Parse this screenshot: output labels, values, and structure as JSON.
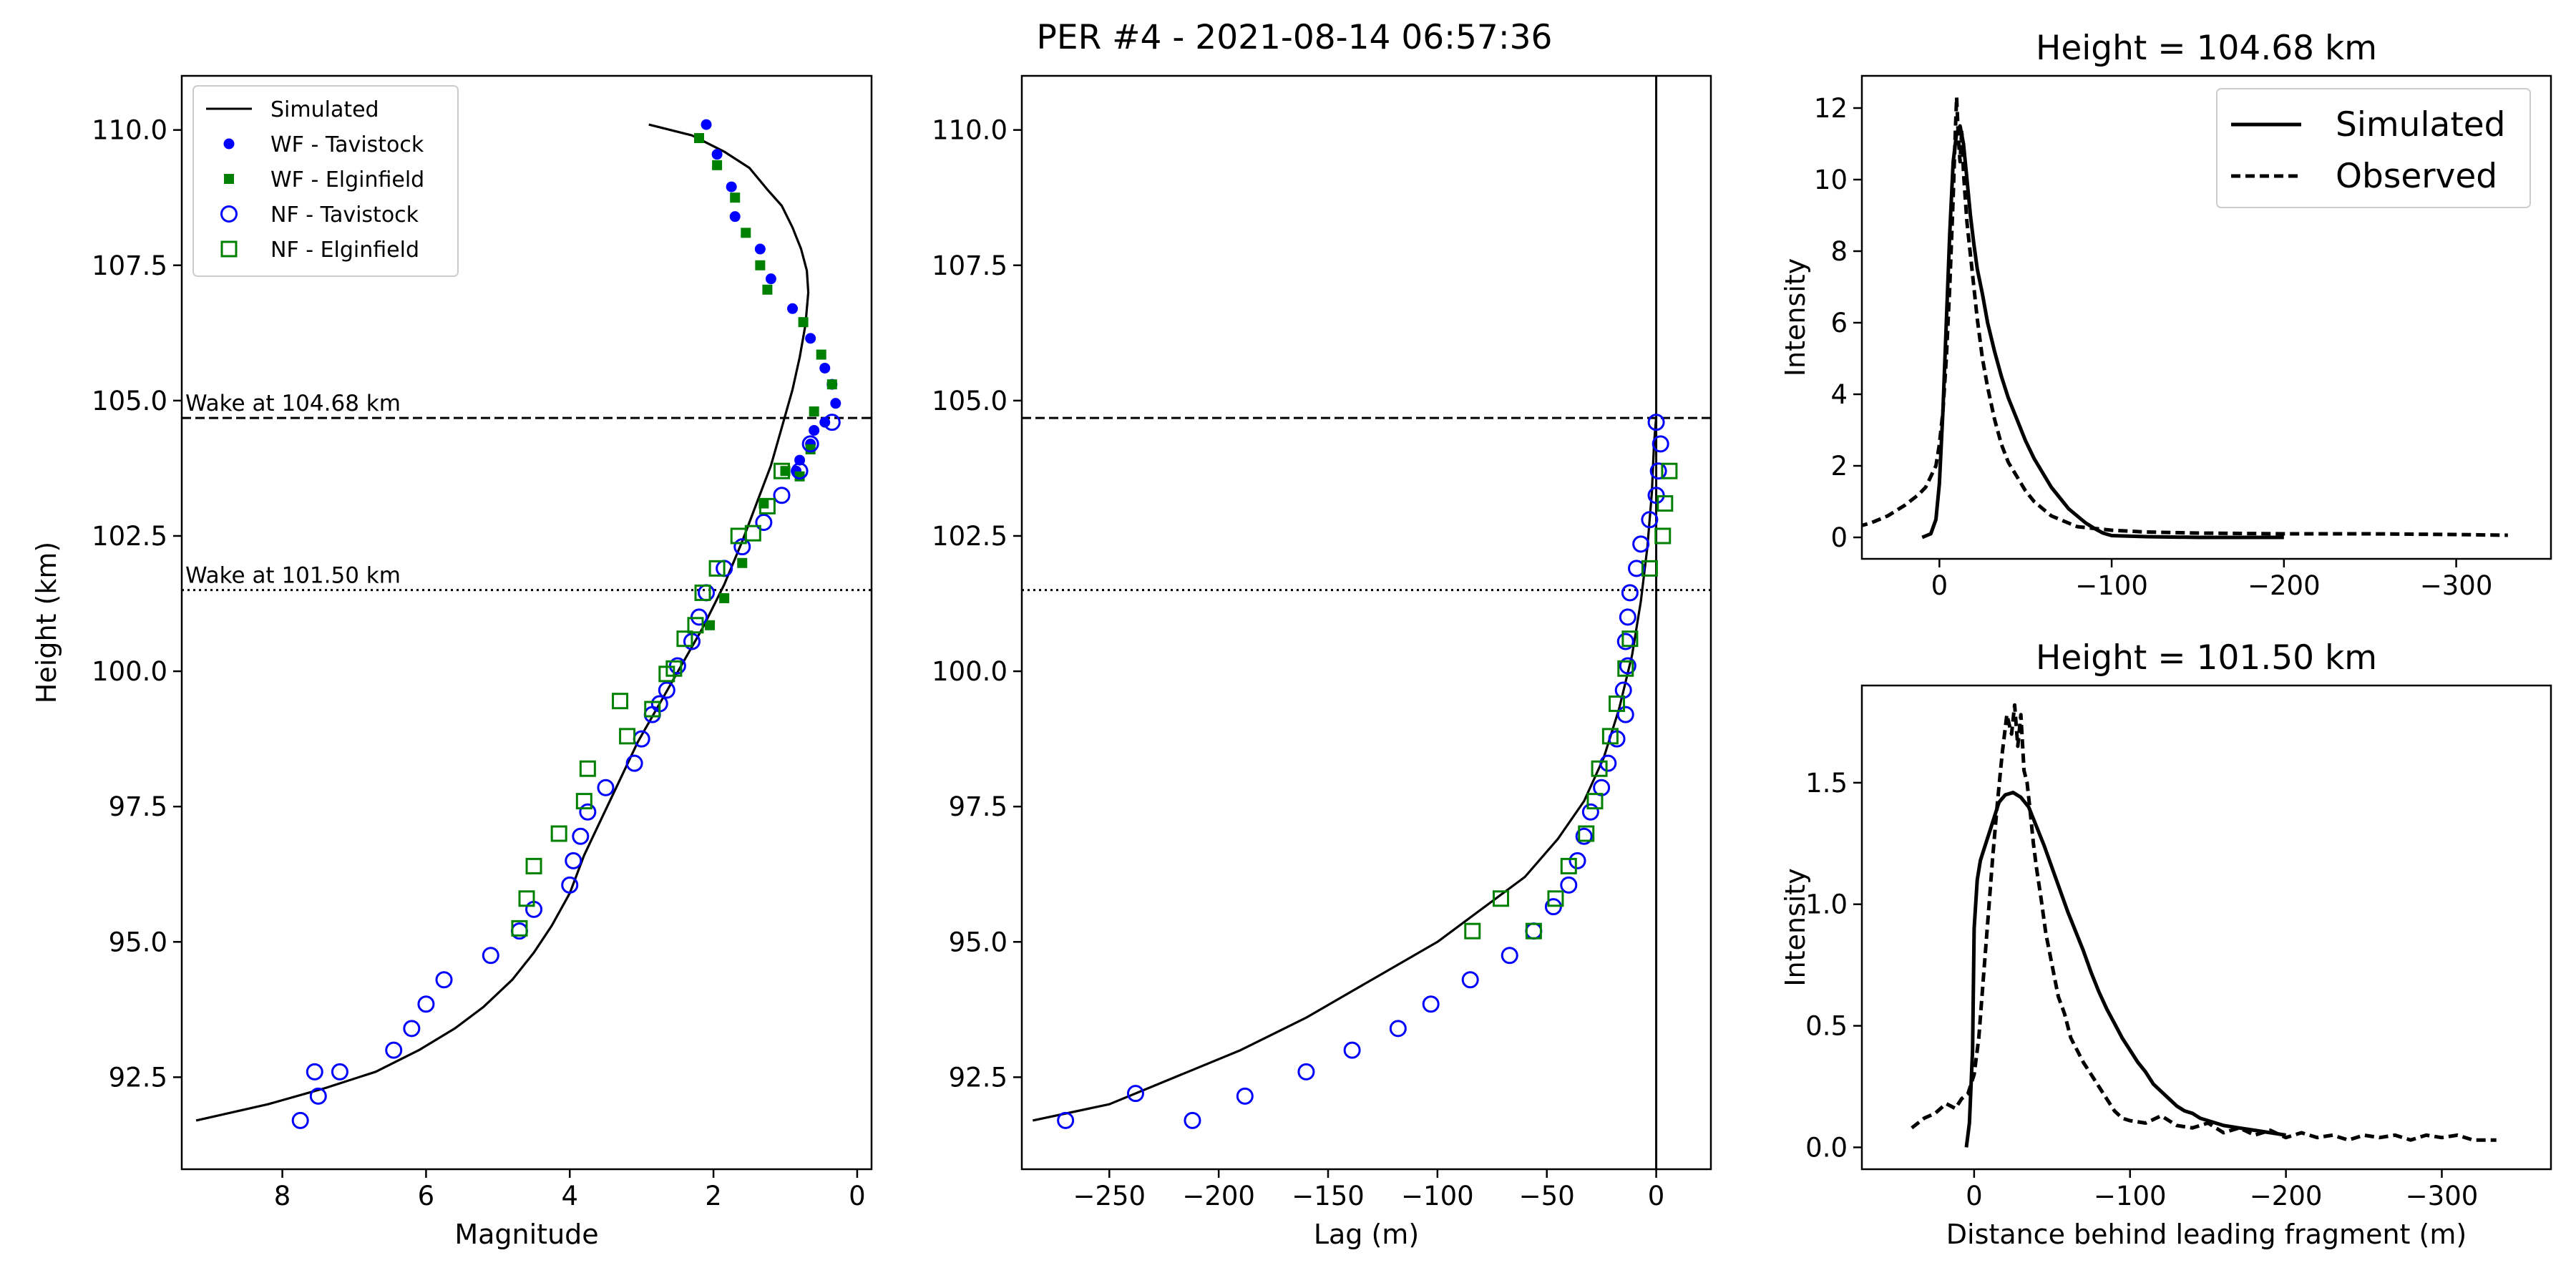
{
  "figure": {
    "suptitle": "PER #4 - 2021-08-14 06:57:36"
  },
  "chart_data": [
    {
      "id": "magnitude",
      "type": "line+scatter",
      "title": "",
      "xlabel": "Magnitude",
      "ylabel": "Height (km)",
      "xlim": [
        9.4,
        -0.2
      ],
      "ylim": [
        90.8,
        111.0
      ],
      "xticks": [
        8,
        6,
        4,
        2,
        0
      ],
      "yticks": [
        92.5,
        95.0,
        97.5,
        100.0,
        102.5,
        105.0,
        107.5,
        110.0
      ],
      "legend_position": "upper-left",
      "hlines": [
        {
          "y": 104.68,
          "style": "dashed",
          "label": "Wake at 104.68 km"
        },
        {
          "y": 101.5,
          "style": "dotted",
          "label": "Wake at 101.50 km"
        }
      ],
      "series": [
        {
          "name": "Simulated",
          "kind": "line",
          "color": "#000000",
          "x": [
            9.2,
            8.2,
            7.4,
            6.7,
            6.1,
            5.6,
            5.2,
            4.8,
            4.5,
            4.25,
            4.0,
            3.8,
            3.55,
            3.3,
            3.05,
            2.75,
            2.45,
            2.15,
            1.85,
            1.6,
            1.4,
            1.2,
            1.05,
            0.9,
            0.8,
            0.72,
            0.68,
            0.7,
            0.78,
            0.9,
            1.05,
            1.25,
            1.5,
            1.85,
            2.3,
            2.9
          ],
          "y": [
            91.7,
            92.0,
            92.3,
            92.6,
            93.0,
            93.4,
            93.8,
            94.3,
            94.8,
            95.3,
            95.9,
            96.6,
            97.3,
            98.0,
            98.7,
            99.4,
            100.1,
            100.8,
            101.6,
            102.4,
            103.1,
            103.8,
            104.5,
            105.2,
            105.8,
            106.4,
            107.0,
            107.4,
            107.8,
            108.2,
            108.6,
            108.9,
            109.3,
            109.6,
            109.9,
            110.1
          ]
        },
        {
          "name": "WF - Tavistock",
          "kind": "filled-circle",
          "color": "#0000ff",
          "x": [
            2.1,
            1.95,
            1.75,
            1.7,
            1.35,
            1.2,
            0.9,
            0.65,
            0.45,
            0.35,
            0.3,
            0.45,
            0.6,
            0.65,
            0.8,
            0.85
          ],
          "y": [
            110.1,
            109.55,
            108.95,
            108.4,
            107.8,
            107.25,
            106.7,
            106.15,
            105.6,
            105.3,
            104.95,
            104.6,
            104.45,
            104.2,
            103.9,
            103.7
          ]
        },
        {
          "name": "WF - Elginfield",
          "kind": "filled-square",
          "color": "#008000",
          "x": [
            2.2,
            1.95,
            1.7,
            1.55,
            1.35,
            1.25,
            0.75,
            0.5,
            0.35,
            0.6,
            0.65,
            0.8,
            1.0,
            1.3,
            1.6,
            1.85,
            2.05
          ],
          "y": [
            109.85,
            109.35,
            108.75,
            108.1,
            107.5,
            107.05,
            106.45,
            105.85,
            105.3,
            104.8,
            104.1,
            103.6,
            103.7,
            103.1,
            102.0,
            101.35,
            100.85
          ]
        },
        {
          "name": "NF - Tavistock",
          "kind": "open-circle",
          "color": "#0000ff",
          "x": [
            0.35,
            0.65,
            0.8,
            1.05,
            1.3,
            1.6,
            1.85,
            2.1,
            2.2,
            2.3,
            2.5,
            2.65,
            2.75,
            2.85,
            3.0,
            3.1,
            3.5,
            3.75,
            3.85,
            3.95,
            4.0,
            4.5,
            4.7,
            5.1,
            5.75,
            6.0,
            6.2,
            6.45,
            7.2,
            7.5,
            7.55,
            7.75
          ],
          "y": [
            104.6,
            104.2,
            103.7,
            103.25,
            102.75,
            102.3,
            101.9,
            101.45,
            101.0,
            100.55,
            100.1,
            99.65,
            99.4,
            99.2,
            98.75,
            98.3,
            97.85,
            97.4,
            96.95,
            96.5,
            96.05,
            95.6,
            95.2,
            94.75,
            94.3,
            93.85,
            93.4,
            93.0,
            92.6,
            92.15,
            92.6,
            91.7
          ]
        },
        {
          "name": "NF - Elginfield",
          "kind": "open-square",
          "color": "#008000",
          "x": [
            1.05,
            1.25,
            1.45,
            1.65,
            1.95,
            2.15,
            2.25,
            2.4,
            2.55,
            2.65,
            2.85,
            3.2,
            3.3,
            3.75,
            3.8,
            4.15,
            4.5,
            4.6,
            4.7
          ],
          "y": [
            103.7,
            103.05,
            102.55,
            102.5,
            101.9,
            101.45,
            100.85,
            100.6,
            100.05,
            99.95,
            99.3,
            98.8,
            99.45,
            98.2,
            97.6,
            97.0,
            96.4,
            95.8,
            95.25
          ]
        }
      ]
    },
    {
      "id": "lag",
      "type": "line+scatter",
      "title": "",
      "xlabel": "Lag (m)",
      "ylabel": "",
      "xlim": [
        -290,
        25
      ],
      "ylim": [
        90.8,
        111.0
      ],
      "xticks": [
        -250,
        -200,
        -150,
        -100,
        -50,
        0
      ],
      "yticks": [
        92.5,
        95.0,
        97.5,
        100.0,
        102.5,
        105.0,
        107.5,
        110.0
      ],
      "vline_x": 0,
      "hlines": [
        {
          "y": 104.68,
          "style": "dashed"
        },
        {
          "y": 101.5,
          "style": "dotted"
        }
      ],
      "series": [
        {
          "name": "Simulated",
          "kind": "line",
          "color": "#000000",
          "x": [
            -285,
            -250,
            -220,
            -190,
            -160,
            -130,
            -100,
            -80,
            -60,
            -45,
            -33,
            -24,
            -17,
            -11,
            -7,
            -4,
            -2,
            -1,
            0
          ],
          "y": [
            91.7,
            92.0,
            92.5,
            93.0,
            93.6,
            94.3,
            95.0,
            95.6,
            96.2,
            96.9,
            97.6,
            98.4,
            99.3,
            100.3,
            101.3,
            102.3,
            103.3,
            104.2,
            104.7
          ]
        },
        {
          "name": "NF - Tavistock",
          "kind": "open-circle",
          "color": "#0000ff",
          "x": [
            0,
            2,
            1,
            0,
            -3,
            -7,
            -9,
            -12,
            -13,
            -14,
            -13,
            -15,
            -14,
            -18,
            -22,
            -25,
            -30,
            -33,
            -36,
            -40,
            -47,
            -56,
            -67,
            -85,
            -103,
            -118,
            -139,
            -160,
            -188,
            -212,
            -238,
            -270
          ],
          "y": [
            104.6,
            104.2,
            103.7,
            103.25,
            102.8,
            102.35,
            101.9,
            101.45,
            101.0,
            100.55,
            100.1,
            99.65,
            99.2,
            98.75,
            98.3,
            97.85,
            97.4,
            96.95,
            96.5,
            96.05,
            95.65,
            95.2,
            94.75,
            94.3,
            93.85,
            93.4,
            93.0,
            92.6,
            92.15,
            91.7,
            92.2,
            91.7
          ]
        },
        {
          "name": "NF - Elginfield",
          "kind": "open-square",
          "color": "#008000",
          "x": [
            6,
            4,
            3,
            -3,
            -12,
            -14,
            -18,
            -21,
            -26,
            -28,
            -32,
            -40,
            -46,
            -56,
            -71,
            -84
          ],
          "y": [
            103.7,
            103.1,
            102.5,
            101.9,
            100.6,
            100.05,
            99.4,
            98.8,
            98.2,
            97.6,
            97.0,
            96.4,
            95.8,
            95.2,
            95.8,
            95.2
          ]
        }
      ]
    },
    {
      "id": "wake_upper",
      "type": "line",
      "title": "Height = 104.68 km",
      "xlabel": "",
      "ylabel": "Intensity",
      "xlim": [
        45,
        -355
      ],
      "ylim": [
        -0.6,
        12.9
      ],
      "xticks": [
        0,
        -100,
        -200,
        -300
      ],
      "yticks": [
        0,
        2,
        4,
        6,
        8,
        10,
        12
      ],
      "legend_position": "upper-right",
      "series": [
        {
          "name": "Simulated",
          "style": "solid",
          "color": "#000000",
          "x": [
            10,
            5,
            2,
            0,
            -2,
            -4,
            -6,
            -8,
            -10,
            -12,
            -14,
            -16,
            -18,
            -20,
            -22,
            -25,
            -28,
            -32,
            -36,
            -40,
            -45,
            -50,
            -55,
            -60,
            -65,
            -70,
            -75,
            -80,
            -85,
            -90,
            -95,
            -100,
            -120,
            -150,
            -200
          ],
          "y": [
            0.0,
            0.1,
            0.5,
            1.5,
            3.5,
            6.0,
            8.5,
            10.5,
            11.3,
            11.5,
            11.0,
            10.0,
            9.0,
            8.2,
            7.5,
            6.8,
            6.0,
            5.2,
            4.5,
            3.9,
            3.3,
            2.7,
            2.2,
            1.8,
            1.4,
            1.1,
            0.8,
            0.6,
            0.4,
            0.25,
            0.12,
            0.05,
            0.02,
            0.0,
            0.0
          ]
        },
        {
          "name": "Observed",
          "style": "dashed",
          "color": "#000000",
          "x": [
            55,
            40,
            30,
            20,
            12,
            8,
            5,
            2,
            0,
            -2,
            -4,
            -6,
            -8,
            -9,
            -10,
            -11,
            -12,
            -13,
            -14,
            -15,
            -16,
            -18,
            -20,
            -22,
            -25,
            -28,
            -32,
            -36,
            -40,
            -45,
            -50,
            -55,
            -60,
            -65,
            -70,
            -75,
            -80,
            -90,
            -100,
            -120,
            -150,
            -200,
            -250,
            -300,
            -330
          ],
          "y": [
            0.2,
            0.4,
            0.6,
            0.9,
            1.2,
            1.4,
            1.7,
            2.0,
            2.6,
            3.5,
            5.0,
            7.0,
            9.5,
            11.0,
            12.3,
            11.2,
            10.5,
            11.4,
            10.2,
            9.5,
            8.8,
            7.9,
            7.0,
            6.1,
            5.0,
            4.2,
            3.3,
            2.6,
            2.1,
            1.7,
            1.3,
            1.0,
            0.8,
            0.6,
            0.5,
            0.4,
            0.3,
            0.25,
            0.2,
            0.15,
            0.12,
            0.1,
            0.1,
            0.08,
            0.06
          ]
        }
      ]
    },
    {
      "id": "wake_lower",
      "type": "line",
      "title": "Height = 101.50 km",
      "xlabel": "Distance behind leading fragment (m)",
      "ylabel": "Intensity",
      "xlim": [
        72,
        -370
      ],
      "ylim": [
        -0.09,
        1.9
      ],
      "xticks": [
        0,
        -100,
        -200,
        -300
      ],
      "yticks": [
        0.0,
        0.5,
        1.0,
        1.5
      ],
      "series": [
        {
          "name": "Simulated",
          "style": "solid",
          "color": "#000000",
          "x": [
            5,
            3,
            1,
            0,
            -2,
            -4,
            -6,
            -8,
            -10,
            -13,
            -16,
            -20,
            -25,
            -30,
            -35,
            -40,
            -45,
            -50,
            -55,
            -60,
            -65,
            -70,
            -75,
            -80,
            -85,
            -90,
            -95,
            -100,
            -105,
            -110,
            -115,
            -120,
            -125,
            -130,
            -135,
            -140,
            -145,
            -150,
            -160,
            -170,
            -180,
            -190,
            -200
          ],
          "y": [
            0.0,
            0.1,
            0.4,
            0.9,
            1.1,
            1.18,
            1.22,
            1.26,
            1.3,
            1.36,
            1.42,
            1.45,
            1.46,
            1.44,
            1.4,
            1.32,
            1.24,
            1.15,
            1.06,
            0.97,
            0.89,
            0.81,
            0.72,
            0.64,
            0.57,
            0.51,
            0.45,
            0.4,
            0.35,
            0.31,
            0.26,
            0.23,
            0.2,
            0.17,
            0.15,
            0.14,
            0.12,
            0.11,
            0.09,
            0.08,
            0.07,
            0.06,
            0.05
          ]
        },
        {
          "name": "Observed",
          "style": "dashed",
          "color": "#000000",
          "x": [
            40,
            32,
            25,
            18,
            12,
            8,
            4,
            0,
            -3,
            -6,
            -9,
            -12,
            -15,
            -18,
            -21,
            -24,
            -26,
            -28,
            -30,
            -32,
            -34,
            -36,
            -38,
            -40,
            -43,
            -46,
            -50,
            -54,
            -58,
            -62,
            -66,
            -70,
            -75,
            -80,
            -85,
            -90,
            -95,
            -100,
            -110,
            -120,
            -130,
            -140,
            -150,
            -160,
            -170,
            -180,
            -190,
            -200,
            -210,
            -220,
            -230,
            -240,
            -250,
            -260,
            -270,
            -280,
            -290,
            -300,
            -310,
            -320,
            -335
          ],
          "y": [
            0.08,
            0.12,
            0.14,
            0.18,
            0.16,
            0.2,
            0.22,
            0.3,
            0.45,
            0.7,
            0.95,
            1.2,
            1.42,
            1.62,
            1.78,
            1.7,
            1.82,
            1.65,
            1.78,
            1.55,
            1.5,
            1.38,
            1.25,
            1.15,
            1.02,
            0.88,
            0.75,
            0.62,
            0.55,
            0.45,
            0.4,
            0.35,
            0.3,
            0.25,
            0.2,
            0.15,
            0.12,
            0.11,
            0.1,
            0.13,
            0.09,
            0.08,
            0.1,
            0.06,
            0.08,
            0.05,
            0.07,
            0.04,
            0.06,
            0.04,
            0.05,
            0.03,
            0.05,
            0.04,
            0.05,
            0.03,
            0.05,
            0.04,
            0.05,
            0.03,
            0.03
          ]
        }
      ]
    }
  ]
}
